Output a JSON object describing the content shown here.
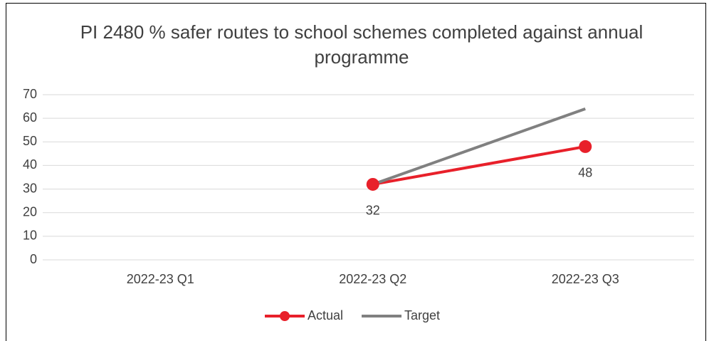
{
  "chart_data": {
    "type": "line",
    "title": "PI 2480 % safer routes to school schemes completed against annual programme",
    "categories": [
      "2022-23 Q1",
      "2022-23 Q2",
      "2022-23 Q3"
    ],
    "series": [
      {
        "name": "Actual",
        "color": "#e8202a",
        "values": [
          null,
          32,
          48
        ],
        "markers": true,
        "data_labels": true
      },
      {
        "name": "Target",
        "color": "#808080",
        "values": [
          null,
          32,
          64
        ],
        "markers": false,
        "data_labels": false
      }
    ],
    "ylim": [
      0,
      70
    ],
    "yticks": [
      0,
      10,
      20,
      30,
      40,
      50,
      60,
      70
    ],
    "grid": true,
    "legend": "bottom"
  }
}
